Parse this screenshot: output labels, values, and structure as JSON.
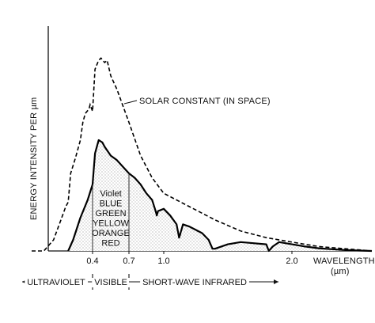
{
  "chart_data": {
    "type": "area",
    "ylabel": "ENERGY INTENSITY PER µm",
    "xlabel_line1": "WAVELENGTH",
    "xlabel_line2": "(µm)",
    "xticks": [
      {
        "value": 0.4,
        "label": "0.4"
      },
      {
        "value": 0.7,
        "label": "0.7"
      },
      {
        "value": 1.0,
        "label": "1.0"
      },
      {
        "value": 2.0,
        "label": "2.0"
      }
    ],
    "visible_colors": [
      "Violet",
      "BLUE",
      "GREEN",
      "YELLOW",
      "ORANGE",
      "RED"
    ],
    "annotation": "SOLAR CONSTANT (IN SPACE)",
    "bands": [
      {
        "label": "ULTRAVIOLET",
        "from": null,
        "to": 0.4
      },
      {
        "label": "VISIBLE",
        "from": 0.4,
        "to": 0.7
      },
      {
        "label": "SHORT-WAVE INFRARED",
        "from": 0.7,
        "to": null
      }
    ],
    "series": [
      {
        "style": "dashed",
        "x": [
          0.15,
          0.2,
          0.24,
          0.27,
          0.29,
          0.3,
          0.31,
          0.33,
          0.35,
          0.36,
          0.37,
          0.385,
          0.39,
          0.4,
          0.42,
          0.45,
          0.47,
          0.5,
          0.52,
          0.55,
          0.6,
          0.7,
          0.8,
          0.9,
          1.0,
          1.2,
          1.4,
          1.6,
          1.8,
          2.0,
          2.2,
          2.4,
          2.6
        ],
        "y": [
          0.0,
          0.0,
          0.05,
          0.14,
          0.2,
          0.22,
          0.35,
          0.42,
          0.5,
          0.58,
          0.62,
          0.64,
          0.66,
          0.63,
          0.82,
          0.86,
          0.87,
          0.85,
          0.86,
          0.79,
          0.73,
          0.58,
          0.43,
          0.33,
          0.26,
          0.2,
          0.14,
          0.09,
          0.06,
          0.04,
          0.02,
          0.01,
          0.0
        ]
      },
      {
        "style": "solid",
        "x": [
          0.3,
          0.32,
          0.35,
          0.38,
          0.4,
          0.42,
          0.45,
          0.48,
          0.5,
          0.55,
          0.6,
          0.65,
          0.7,
          0.75,
          0.8,
          0.85,
          0.9,
          0.93,
          0.94,
          0.95,
          1.0,
          1.05,
          1.1,
          1.12,
          1.13,
          1.15,
          1.2,
          1.25,
          1.3,
          1.35,
          1.38,
          1.4,
          1.5,
          1.6,
          1.7,
          1.8,
          1.82,
          1.85,
          1.9,
          2.0,
          2.1,
          2.2,
          2.3,
          2.4,
          2.6
        ],
        "y": [
          0.0,
          0.05,
          0.15,
          0.23,
          0.3,
          0.44,
          0.5,
          0.49,
          0.47,
          0.43,
          0.41,
          0.38,
          0.35,
          0.33,
          0.3,
          0.26,
          0.23,
          0.18,
          0.16,
          0.18,
          0.19,
          0.16,
          0.12,
          0.06,
          0.08,
          0.12,
          0.11,
          0.095,
          0.08,
          0.05,
          0.01,
          0.01,
          0.03,
          0.04,
          0.035,
          0.03,
          0.0,
          0.02,
          0.04,
          0.03,
          0.02,
          0.012,
          0.008,
          0.004,
          0.0
        ]
      }
    ]
  }
}
